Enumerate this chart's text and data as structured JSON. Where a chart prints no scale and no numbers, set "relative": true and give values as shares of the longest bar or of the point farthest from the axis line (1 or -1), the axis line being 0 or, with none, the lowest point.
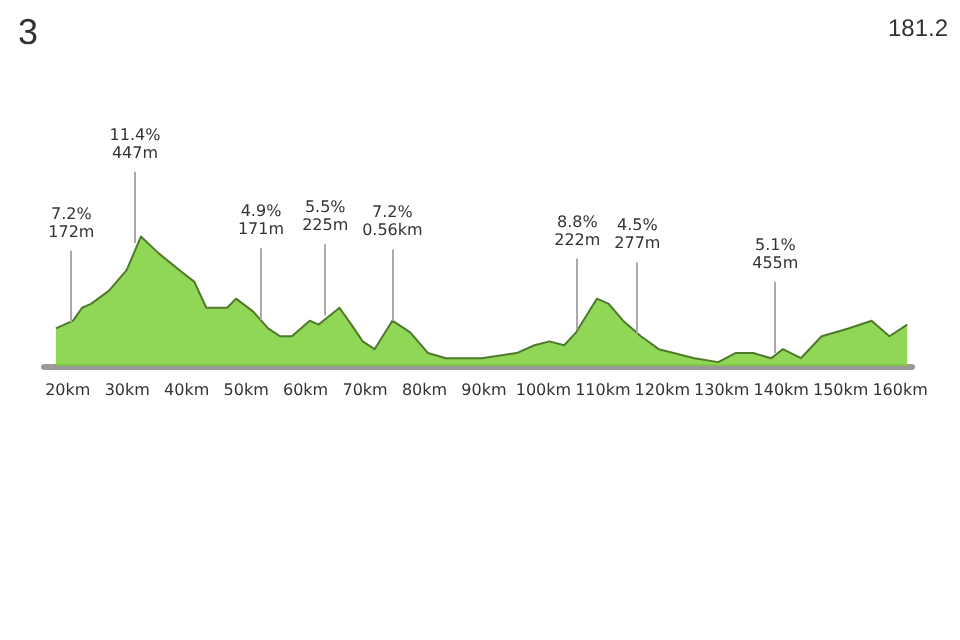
{
  "chart_data": {
    "type": "area",
    "title": "3",
    "relative": true,
    "color": "#7ccf3a",
    "x": [
      18,
      20.9,
      22.4,
      23.9,
      26.9,
      29.9,
      32.3,
      35.3,
      38.8,
      41.3,
      43.3,
      46.8,
      48.3,
      51.2,
      53.7,
      55.7,
      57.7,
      60.7,
      62.2,
      65.7,
      67.7,
      69.6,
      71.6,
      74.6,
      77.6,
      80.6,
      83.6,
      89.6,
      95.5,
      98.5,
      101,
      103.5,
      105.5,
      109,
      111,
      113.4,
      116.4,
      119.4,
      125.4,
      129.4,
      132.3,
      135.3,
      138.3,
      140.3,
      143.3,
      146.8,
      151.3,
      155.2,
      158.2,
      161.2
    ],
    "values": [
      0.29,
      0.35,
      0.45,
      0.48,
      0.58,
      0.74,
      1,
      0.87,
      0.74,
      0.65,
      0.45,
      0.45,
      0.52,
      0.42,
      0.29,
      0.23,
      0.23,
      0.35,
      0.32,
      0.45,
      0.32,
      0.19,
      0.13,
      0.35,
      0.26,
      0.1,
      0.06,
      0.06,
      0.1,
      0.16,
      0.19,
      0.16,
      0.26,
      0.52,
      0.48,
      0.35,
      0.23,
      0.13,
      0.06,
      0.03,
      0.1,
      0.1,
      0.06,
      0.13,
      0.06,
      0.23,
      0.29,
      0.35,
      0.23,
      0.32
    ],
    "xlim": [
      16,
      162
    ],
    "xticks": [
      {
        "value": 20,
        "label": "20km"
      },
      {
        "value": 30,
        "label": "30km"
      },
      {
        "value": 40,
        "label": "40km"
      },
      {
        "value": 50,
        "label": "50km"
      },
      {
        "value": 60,
        "label": "60km"
      },
      {
        "value": 70,
        "label": "70km"
      },
      {
        "value": 80,
        "label": "80km"
      },
      {
        "value": 90,
        "label": "90km"
      },
      {
        "value": 100,
        "label": "100km"
      },
      {
        "value": 110,
        "label": "110km"
      },
      {
        "value": 120,
        "label": "120km"
      },
      {
        "value": 130,
        "label": "130km"
      },
      {
        "value": 140,
        "label": "140km"
      },
      {
        "value": 150,
        "label": "150km"
      },
      {
        "value": 160,
        "label": "160km"
      }
    ],
    "annotations": [
      "181.2",
      {
        "text": "7.2%\n172m",
        "x": 20.6,
        "y": 0.34
      },
      {
        "text": "11.4%\n447m",
        "x": 31.3,
        "y": 0.95
      },
      {
        "text": "4.9%\n171m",
        "x": 52.5,
        "y": 0.36
      },
      {
        "text": "5.5%\n225m",
        "x": 63.3,
        "y": 0.39
      },
      {
        "text": "7.2%\n0.56km",
        "x": 74.6,
        "y": 0.35
      },
      {
        "text": "8.8%\n222m",
        "x": 105.7,
        "y": 0.28
      },
      {
        "text": "4.5%\n277m",
        "x": 115.8,
        "y": 0.25
      },
      {
        "text": "5.1%\n455m",
        "x": 139,
        "y": 0.1
      }
    ]
  }
}
